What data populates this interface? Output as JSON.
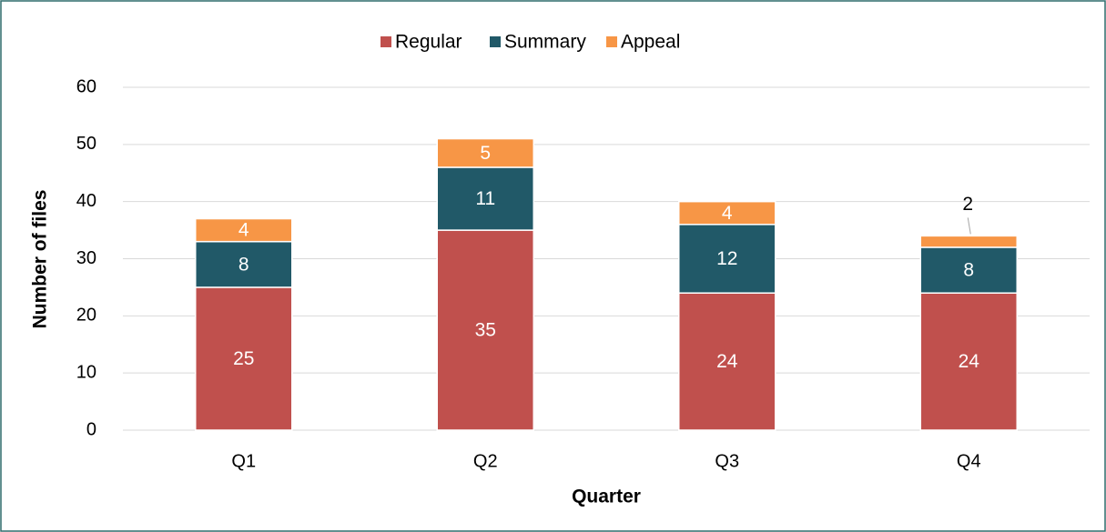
{
  "chart_data": {
    "type": "bar",
    "stacked": true,
    "categories": [
      "Q1",
      "Q2",
      "Q3",
      "Q4"
    ],
    "series": [
      {
        "name": "Regular",
        "color": "#c0504d",
        "values": [
          25,
          35,
          24,
          24
        ]
      },
      {
        "name": "Summary",
        "color": "#215968",
        "values": [
          8,
          11,
          12,
          8
        ]
      },
      {
        "name": "Appeal",
        "color": "#f79646",
        "values": [
          4,
          5,
          4,
          2
        ]
      }
    ],
    "x_label": "Quarter",
    "y_label": "Number of files",
    "ylim": [
      0,
      60
    ],
    "yticks": [
      0,
      10,
      20,
      30,
      40,
      50,
      60
    ],
    "grid": true,
    "legend": "top"
  }
}
